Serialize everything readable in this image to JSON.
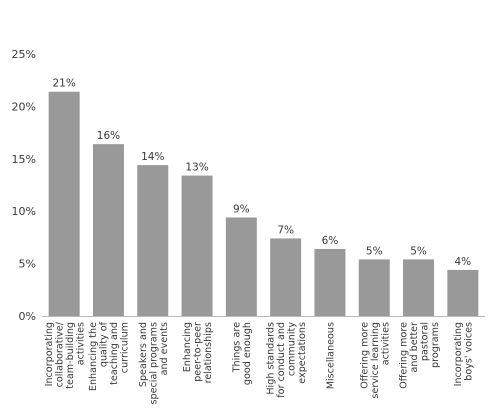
{
  "chart_data": {
    "type": "bar",
    "title": "",
    "xlabel": "",
    "ylabel": "",
    "ylim": [
      0,
      25
    ],
    "y_ticks": [
      "0%",
      "5%",
      "10%",
      "15%",
      "20%",
      "25%"
    ],
    "categories": [
      [
        "Incorporating",
        "collaborative/",
        "team-building",
        "activities"
      ],
      [
        "Enhancing the",
        "quality of",
        "teaching and",
        "curriculum"
      ],
      [
        "Speakers and",
        "special programs",
        "and events"
      ],
      [
        "Enhancing",
        "peer-to-peer",
        "relationships"
      ],
      [
        "Things are",
        "good enough"
      ],
      [
        "High standards",
        "for conduct and",
        "community",
        "expectations"
      ],
      [
        "Miscellaneous"
      ],
      [
        "Offering more",
        "service learning",
        "activities"
      ],
      [
        "Offering more",
        "and better",
        "pastoral",
        "programs"
      ],
      [
        "Incorporating",
        "boys' voices"
      ]
    ],
    "values": [
      21.4,
      16.4,
      14.4,
      13.4,
      9.4,
      7.4,
      6.4,
      5.4,
      5.4,
      4.4
    ],
    "data_labels": [
      "21%",
      "16%",
      "14%",
      "13%",
      "9%",
      "7%",
      "6%",
      "5%",
      "5%",
      "4%"
    ],
    "bar_color": "#999999",
    "grid": false,
    "legend": "none"
  }
}
